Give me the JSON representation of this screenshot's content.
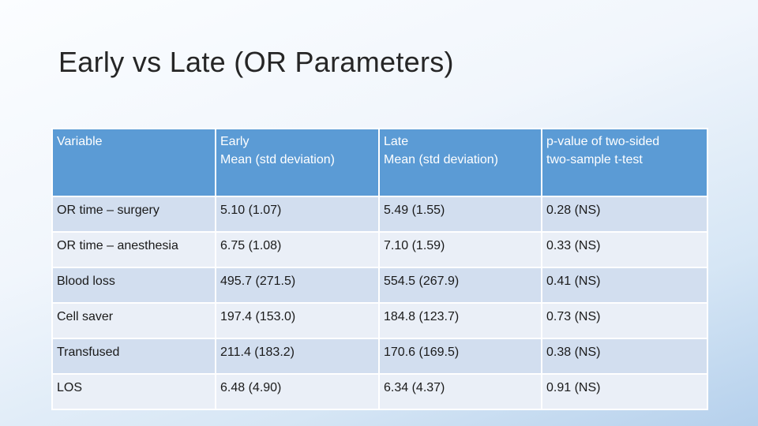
{
  "slide": {
    "title": "Early vs Late (OR Parameters)"
  },
  "table": {
    "headers": [
      {
        "line1": "Variable",
        "line2": ""
      },
      {
        "line1": "Early",
        "line2": "Mean (std deviation)"
      },
      {
        "line1": "Late",
        "line2": "Mean (std deviation)"
      },
      {
        "line1": "p-value of two-sided",
        "line2": "two-sample t-test"
      }
    ],
    "rows": [
      [
        "OR time – surgery",
        "5.10 (1.07)",
        "5.49 (1.55)",
        "0.28 (NS)"
      ],
      [
        "OR time – anesthesia",
        "6.75 (1.08)",
        "7.10 (1.59)",
        "0.33 (NS)"
      ],
      [
        "Blood loss",
        "495.7 (271.5)",
        "554.5 (267.9)",
        "0.41 (NS)"
      ],
      [
        "Cell saver",
        "197.4 (153.0)",
        "184.8 (123.7)",
        "0.73 (NS)"
      ],
      [
        "Transfused",
        "211.4 (183.2)",
        "170.6 (169.5)",
        "0.38 (NS)"
      ],
      [
        "LOS",
        "6.48 (4.90)",
        "6.34 (4.37)",
        "0.91 (NS)"
      ]
    ]
  },
  "colors": {
    "header_bg": "#5b9bd5",
    "row_odd_bg": "#d2deef",
    "row_even_bg": "#eaeff7"
  }
}
